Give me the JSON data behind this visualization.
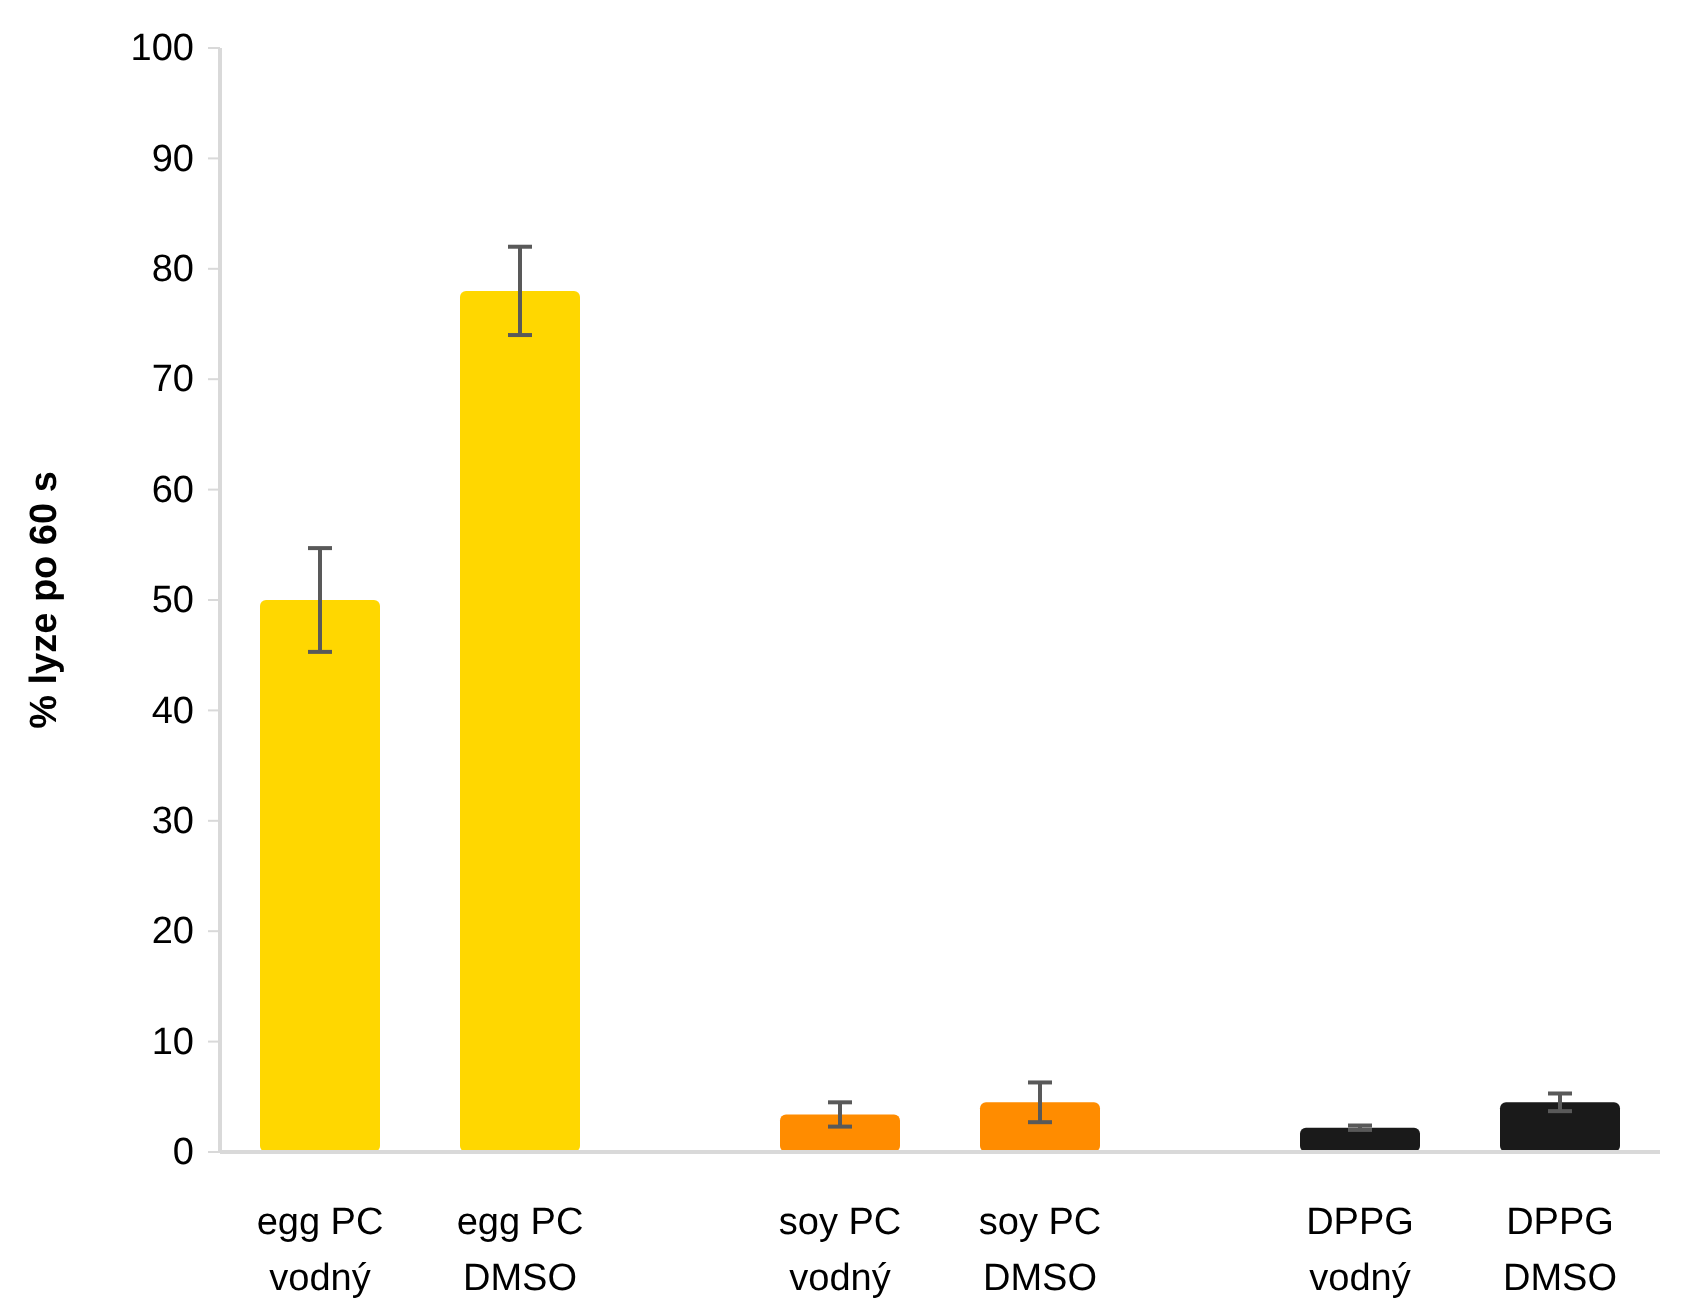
{
  "chart_data": {
    "type": "bar",
    "ylabel": "% lyze po 60 s",
    "categories": [
      "egg PC vodný",
      "egg PC DMSO",
      null,
      "soy PC vodný",
      "soy PC DMSO",
      null,
      "DPPG vodný",
      "DPPG DMSO"
    ],
    "values": [
      50,
      78,
      null,
      3.4,
      4.5,
      null,
      2.2,
      4.5
    ],
    "errors": [
      4.7,
      4,
      null,
      1.1,
      1.8,
      null,
      0.2,
      0.8
    ],
    "colors": [
      "#ffd700",
      "#ffd700",
      null,
      "#ff8c00",
      "#ff8c00",
      null,
      "#1a1a1a",
      "#1a1a1a"
    ],
    "ylim": [
      0,
      100
    ],
    "yticks": [
      0,
      10,
      20,
      30,
      40,
      50,
      60,
      70,
      80,
      90,
      100
    ],
    "grid": false
  }
}
